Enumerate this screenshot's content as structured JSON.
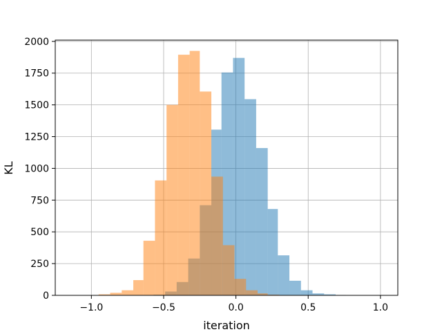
{
  "chart_data": {
    "type": "histogram",
    "xlabel": "iteration",
    "ylabel": "KL",
    "xlim": [
      -1.25,
      1.12
    ],
    "ylim": [
      0,
      2010
    ],
    "grid": true,
    "xticks": [
      -1.0,
      -0.5,
      0.0,
      0.5,
      1.0
    ],
    "xtick_labels": [
      "−1.0",
      "−0.5",
      "0.0",
      "0.5",
      "1.0"
    ],
    "yticks": [
      0,
      250,
      500,
      750,
      1000,
      1250,
      1500,
      1750,
      2000
    ],
    "ytick_labels": [
      "0",
      "250",
      "500",
      "750",
      "1000",
      "1250",
      "1500",
      "1750",
      "2000"
    ],
    "series": [
      {
        "color": "#1f77b4",
        "alpha": 0.5,
        "bins": [
          {
            "x0": -0.57,
            "x1": -0.49,
            "count": 5
          },
          {
            "x0": -0.49,
            "x1": -0.41,
            "count": 30
          },
          {
            "x0": -0.41,
            "x1": -0.33,
            "count": 105
          },
          {
            "x0": -0.33,
            "x1": -0.25,
            "count": 290
          },
          {
            "x0": -0.25,
            "x1": -0.17,
            "count": 710
          },
          {
            "x0": -0.17,
            "x1": -0.1,
            "count": 1305
          },
          {
            "x0": -0.1,
            "x1": -0.02,
            "count": 1755
          },
          {
            "x0": -0.02,
            "x1": 0.06,
            "count": 1870
          },
          {
            "x0": 0.06,
            "x1": 0.14,
            "count": 1545
          },
          {
            "x0": 0.14,
            "x1": 0.22,
            "count": 1160
          },
          {
            "x0": 0.22,
            "x1": 0.29,
            "count": 680
          },
          {
            "x0": 0.29,
            "x1": 0.37,
            "count": 315
          },
          {
            "x0": 0.37,
            "x1": 0.45,
            "count": 115
          },
          {
            "x0": 0.45,
            "x1": 0.53,
            "count": 40
          },
          {
            "x0": 0.53,
            "x1": 0.61,
            "count": 15
          },
          {
            "x0": 0.61,
            "x1": 0.69,
            "count": 8
          },
          {
            "x0": 0.69,
            "x1": 0.76,
            "count": 3
          }
        ]
      },
      {
        "color": "#ff7f0e",
        "alpha": 0.5,
        "bins": [
          {
            "x0": -0.95,
            "x1": -0.87,
            "count": 8
          },
          {
            "x0": -0.87,
            "x1": -0.79,
            "count": 20
          },
          {
            "x0": -0.79,
            "x1": -0.71,
            "count": 40
          },
          {
            "x0": -0.71,
            "x1": -0.64,
            "count": 120
          },
          {
            "x0": -0.64,
            "x1": -0.56,
            "count": 430
          },
          {
            "x0": -0.56,
            "x1": -0.48,
            "count": 905
          },
          {
            "x0": -0.48,
            "x1": -0.4,
            "count": 1500
          },
          {
            "x0": -0.4,
            "x1": -0.32,
            "count": 1895
          },
          {
            "x0": -0.32,
            "x1": -0.25,
            "count": 1925
          },
          {
            "x0": -0.25,
            "x1": -0.17,
            "count": 1605
          },
          {
            "x0": -0.17,
            "x1": -0.09,
            "count": 935
          },
          {
            "x0": -0.09,
            "x1": -0.01,
            "count": 395
          },
          {
            "x0": -0.01,
            "x1": 0.07,
            "count": 130
          },
          {
            "x0": 0.07,
            "x1": 0.15,
            "count": 40
          },
          {
            "x0": 0.15,
            "x1": 0.22,
            "count": 15
          },
          {
            "x0": 0.22,
            "x1": 0.3,
            "count": 5
          }
        ]
      }
    ]
  }
}
